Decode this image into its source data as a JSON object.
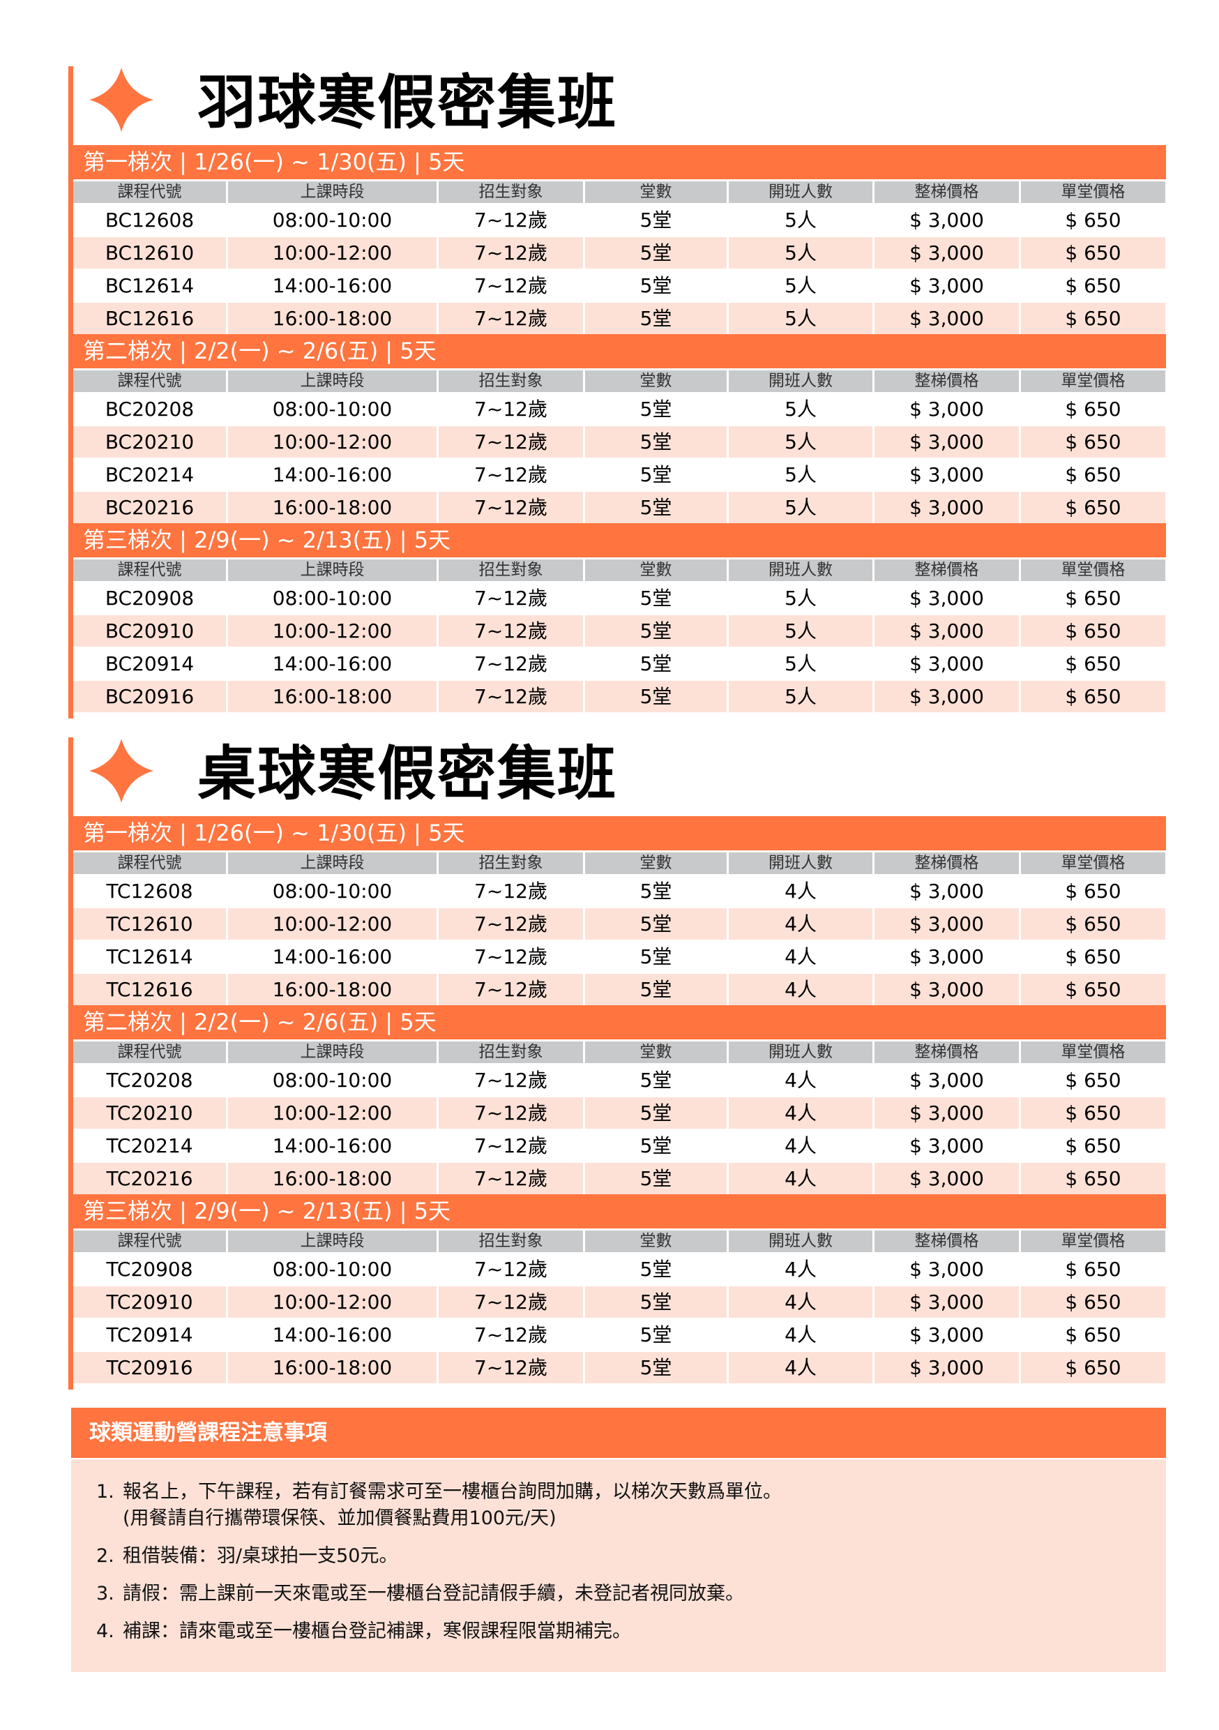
{
  "colors": {
    "accent": "#FF743F",
    "stripe": "#FDE1D7",
    "header_gray": "#C8C9CB"
  },
  "columns": [
    "課程代號",
    "上課時段",
    "招生對象",
    "堂數",
    "開班人數",
    "整梯價格",
    "單堂價格"
  ],
  "sections": [
    {
      "icon": "diamond-icon",
      "title": "羽球寒假密集班",
      "tiers": [
        {
          "label": "第一梯次 | 1/26(一) ~ 1/30(五) | 5天",
          "rows": [
            [
              "BC12608",
              "08:00-10:00",
              "7~12歲",
              "5堂",
              "5人",
              "$ 3,000",
              "$ 650"
            ],
            [
              "BC12610",
              "10:00-12:00",
              "7~12歲",
              "5堂",
              "5人",
              "$ 3,000",
              "$ 650"
            ],
            [
              "BC12614",
              "14:00-16:00",
              "7~12歲",
              "5堂",
              "5人",
              "$ 3,000",
              "$ 650"
            ],
            [
              "BC12616",
              "16:00-18:00",
              "7~12歲",
              "5堂",
              "5人",
              "$ 3,000",
              "$ 650"
            ]
          ]
        },
        {
          "label": "第二梯次 | 2/2(一) ~ 2/6(五) | 5天",
          "rows": [
            [
              "BC20208",
              "08:00-10:00",
              "7~12歲",
              "5堂",
              "5人",
              "$ 3,000",
              "$ 650"
            ],
            [
              "BC20210",
              "10:00-12:00",
              "7~12歲",
              "5堂",
              "5人",
              "$ 3,000",
              "$ 650"
            ],
            [
              "BC20214",
              "14:00-16:00",
              "7~12歲",
              "5堂",
              "5人",
              "$ 3,000",
              "$ 650"
            ],
            [
              "BC20216",
              "16:00-18:00",
              "7~12歲",
              "5堂",
              "5人",
              "$ 3,000",
              "$ 650"
            ]
          ]
        },
        {
          "label": "第三梯次 | 2/9(一) ~ 2/13(五) | 5天",
          "rows": [
            [
              "BC20908",
              "08:00-10:00",
              "7~12歲",
              "5堂",
              "5人",
              "$ 3,000",
              "$ 650"
            ],
            [
              "BC20910",
              "10:00-12:00",
              "7~12歲",
              "5堂",
              "5人",
              "$ 3,000",
              "$ 650"
            ],
            [
              "BC20914",
              "14:00-16:00",
              "7~12歲",
              "5堂",
              "5人",
              "$ 3,000",
              "$ 650"
            ],
            [
              "BC20916",
              "16:00-18:00",
              "7~12歲",
              "5堂",
              "5人",
              "$ 3,000",
              "$ 650"
            ]
          ]
        }
      ]
    },
    {
      "icon": "diamond-icon",
      "title": "桌球寒假密集班",
      "tiers": [
        {
          "label": "第一梯次 | 1/26(一) ~ 1/30(五) | 5天",
          "rows": [
            [
              "TC12608",
              "08:00-10:00",
              "7~12歲",
              "5堂",
              "4人",
              "$ 3,000",
              "$ 650"
            ],
            [
              "TC12610",
              "10:00-12:00",
              "7~12歲",
              "5堂",
              "4人",
              "$ 3,000",
              "$ 650"
            ],
            [
              "TC12614",
              "14:00-16:00",
              "7~12歲",
              "5堂",
              "4人",
              "$ 3,000",
              "$ 650"
            ],
            [
              "TC12616",
              "16:00-18:00",
              "7~12歲",
              "5堂",
              "4人",
              "$ 3,000",
              "$ 650"
            ]
          ]
        },
        {
          "label": "第二梯次 | 2/2(一) ~ 2/6(五) | 5天",
          "rows": [
            [
              "TC20208",
              "08:00-10:00",
              "7~12歲",
              "5堂",
              "4人",
              "$ 3,000",
              "$ 650"
            ],
            [
              "TC20210",
              "10:00-12:00",
              "7~12歲",
              "5堂",
              "4人",
              "$ 3,000",
              "$ 650"
            ],
            [
              "TC20214",
              "14:00-16:00",
              "7~12歲",
              "5堂",
              "4人",
              "$ 3,000",
              "$ 650"
            ],
            [
              "TC20216",
              "16:00-18:00",
              "7~12歲",
              "5堂",
              "4人",
              "$ 3,000",
              "$ 650"
            ]
          ]
        },
        {
          "label": "第三梯次 | 2/9(一) ~ 2/13(五) | 5天",
          "rows": [
            [
              "TC20908",
              "08:00-10:00",
              "7~12歲",
              "5堂",
              "4人",
              "$ 3,000",
              "$ 650"
            ],
            [
              "TC20910",
              "10:00-12:00",
              "7~12歲",
              "5堂",
              "4人",
              "$ 3,000",
              "$ 650"
            ],
            [
              "TC20914",
              "14:00-16:00",
              "7~12歲",
              "5堂",
              "4人",
              "$ 3,000",
              "$ 650"
            ],
            [
              "TC20916",
              "16:00-18:00",
              "7~12歲",
              "5堂",
              "4人",
              "$ 3,000",
              "$ 650"
            ]
          ]
        }
      ]
    }
  ],
  "notes": {
    "title": "球類運動營課程注意事項",
    "items": [
      {
        "num": "1.",
        "text": "報名上，下午課程，若有訂餐需求可至一樓櫃台詢問加購，以梯次天數爲單位。",
        "sub": "(用餐請自行攜帶環保筷、並加價餐點費用100元/天)"
      },
      {
        "num": "2.",
        "text": "租借裝備：羽/桌球拍一支50元。"
      },
      {
        "num": "3.",
        "text": "請假：需上課前一天來電或至一樓櫃台登記請假手續，未登記者視同放棄。"
      },
      {
        "num": "4.",
        "text": "補課：請來電或至一樓櫃台登記補課，寒假課程限當期補完。"
      }
    ]
  }
}
